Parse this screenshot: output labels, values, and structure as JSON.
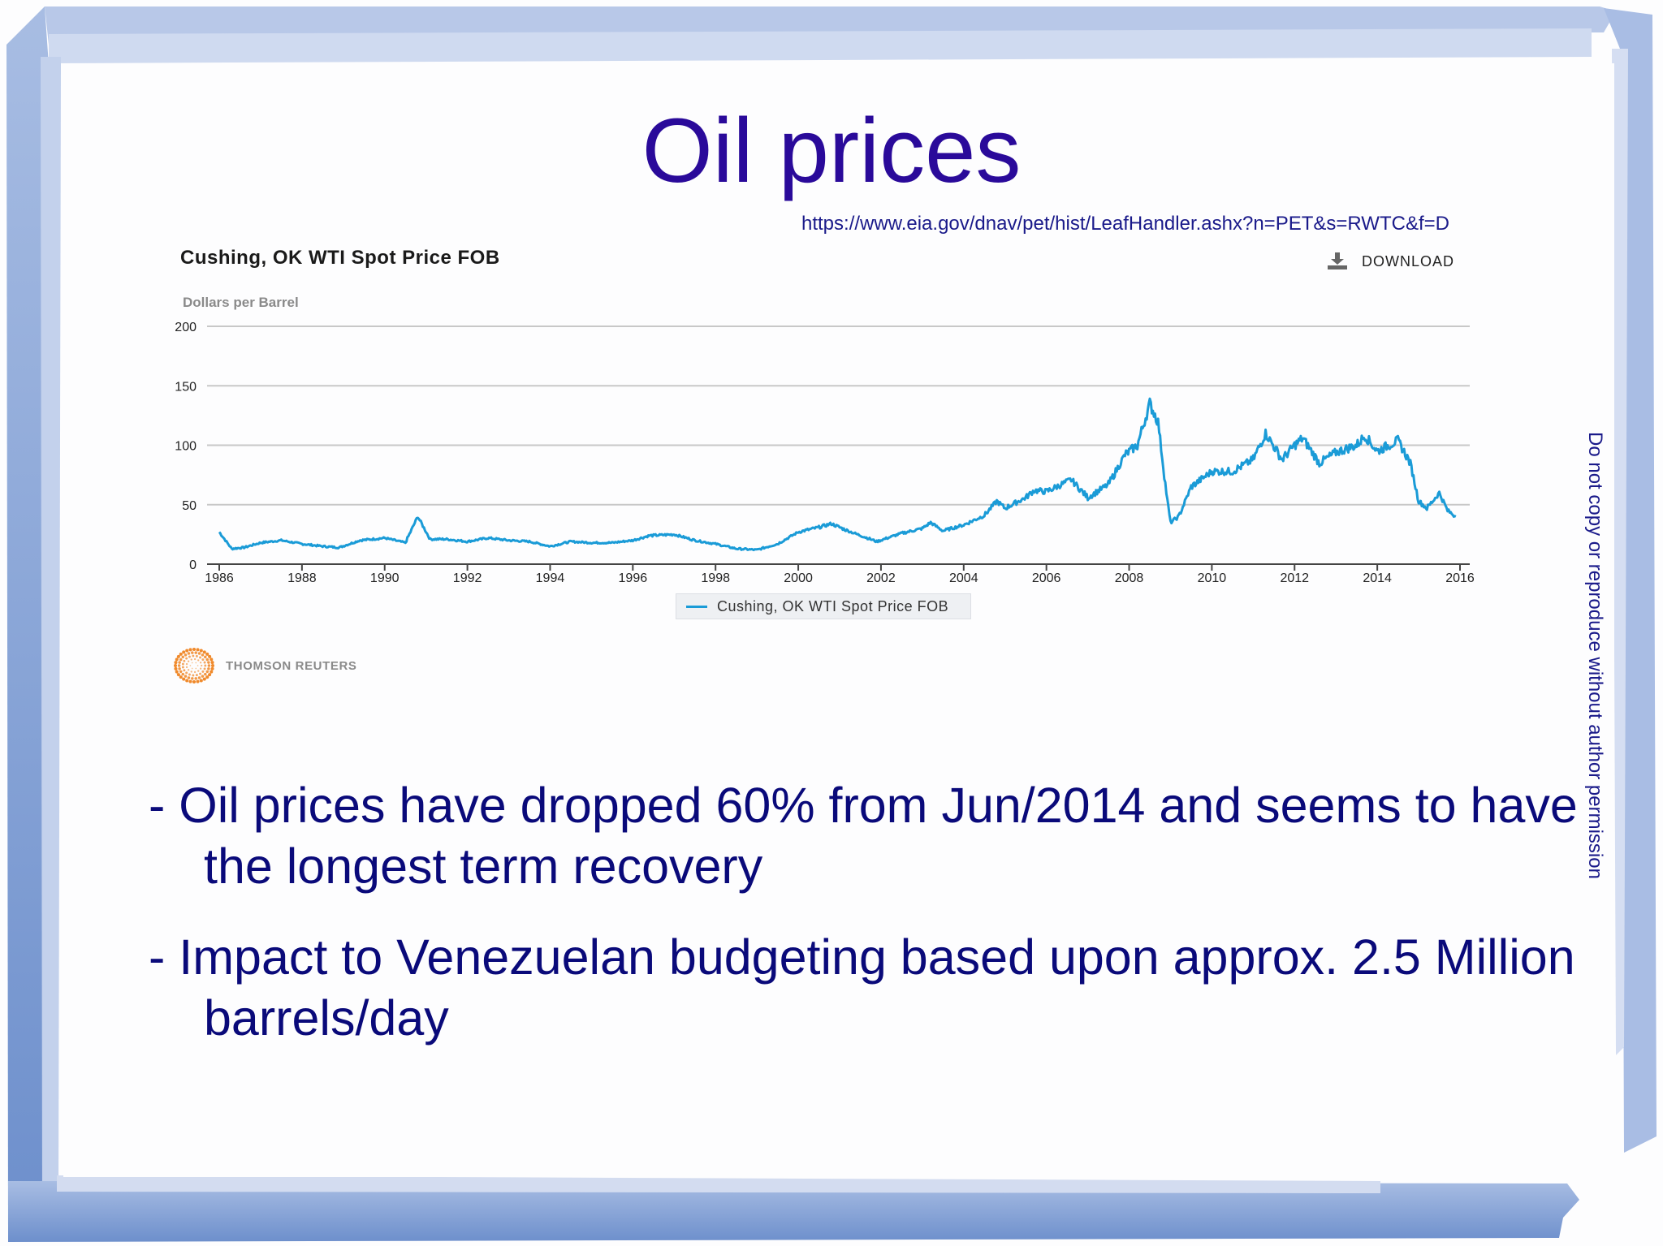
{
  "slide": {
    "title": "Oil prices",
    "source_url": "https://www.eia.gov/dnav/pet/hist/LeafHandler.ashx?n=PET&s=RWTC&f=D",
    "vertical_note": "Do not copy or reproduce without author permission",
    "bullets": [
      "- Oil prices have dropped 60% from Jun/2014 and seems to have the longest term recovery",
      "- Impact to Venezuelan budgeting based upon approx. 2.5 Million barrels/day"
    ],
    "colors": {
      "title": "#2a0a9a",
      "body_text": "#0a0a7a",
      "frame": "#8fa8d6",
      "line": "#1a9bd7"
    }
  },
  "chart_widget": {
    "download_label": "DOWNLOAD",
    "download_icon": "download-icon",
    "logo_text": "THOMSON REUTERS",
    "logo_icon": "thomson-reuters-logo-icon"
  },
  "chart_data": {
    "type": "line",
    "title": "Cushing, OK WTI Spot Price FOB",
    "xlabel": "",
    "ylabel": "Dollars per Barrel",
    "ylim": [
      0,
      200
    ],
    "yticks": [
      0,
      50,
      100,
      150,
      200
    ],
    "xticks": [
      "1986",
      "1988",
      "1990",
      "1992",
      "1994",
      "1996",
      "1998",
      "2000",
      "2002",
      "2004",
      "2006",
      "2008",
      "2010",
      "2012",
      "2014",
      "2016"
    ],
    "grid": true,
    "legend": [
      "Cushing, OK WTI Spot Price FOB"
    ],
    "legend_position": "bottom",
    "series": [
      {
        "name": "Cushing, OK WTI Spot Price FOB",
        "color": "#1a9bd7",
        "x": [
          1986.0,
          1986.3,
          1986.6,
          1987.0,
          1987.5,
          1988.0,
          1988.5,
          1988.9,
          1989.4,
          1990.0,
          1990.5,
          1990.8,
          1991.1,
          1991.5,
          1992.0,
          1992.5,
          1993.0,
          1993.5,
          1994.0,
          1994.5,
          1995.0,
          1995.5,
          1996.0,
          1996.4,
          1997.0,
          1997.5,
          1998.0,
          1998.5,
          1999.0,
          1999.5,
          2000.0,
          2000.5,
          2000.8,
          2001.2,
          2001.9,
          2002.5,
          2003.0,
          2003.2,
          2003.5,
          2004.0,
          2004.5,
          2004.8,
          2005.0,
          2005.5,
          2005.7,
          2006.0,
          2006.6,
          2007.0,
          2007.5,
          2007.9,
          2008.2,
          2008.5,
          2008.7,
          2008.9,
          2009.0,
          2009.2,
          2009.5,
          2010.0,
          2010.5,
          2011.0,
          2011.3,
          2011.7,
          2012.0,
          2012.2,
          2012.6,
          2013.0,
          2013.5,
          2013.7,
          2014.0,
          2014.5,
          2014.8,
          2015.0,
          2015.2,
          2015.5,
          2015.7,
          2015.9
        ],
        "values": [
          27,
          13,
          14,
          18,
          20,
          17,
          15,
          14,
          20,
          22,
          18,
          40,
          21,
          21,
          19,
          22,
          20,
          19,
          15,
          19,
          18,
          18,
          20,
          24,
          25,
          20,
          17,
          13,
          12,
          17,
          27,
          31,
          34,
          28,
          19,
          26,
          30,
          35,
          28,
          33,
          41,
          53,
          47,
          56,
          62,
          61,
          71,
          56,
          67,
          92,
          100,
          135,
          120,
          60,
          35,
          40,
          65,
          78,
          78,
          88,
          110,
          88,
          100,
          106,
          85,
          94,
          100,
          108,
          95,
          104,
          85,
          53,
          47,
          60,
          45,
          40
        ]
      }
    ]
  }
}
